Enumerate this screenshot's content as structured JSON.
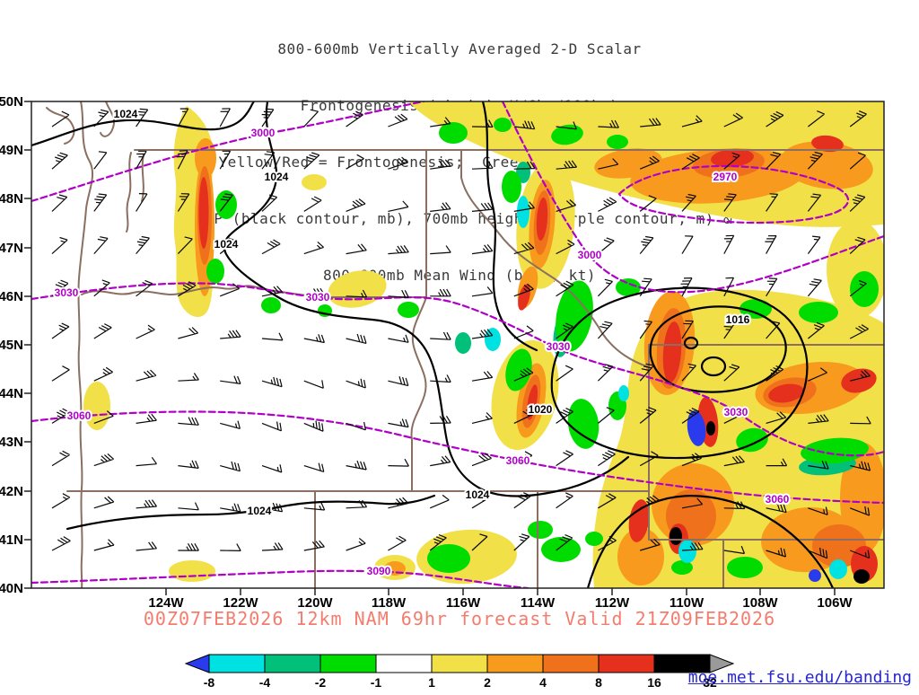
{
  "title": {
    "line1": "800-600mb Vertically Averaged 2-D Scalar",
    "line2": "Frontogenesis (shaded, K/6hr/100km)",
    "line3": "Yellow/Red = Frontogenesis;  Green/Blue = Frontolysis",
    "line4": "MSLP (black contour, mb), 700mb height (purple contour, m) &",
    "line5": "800-600mb Mean Wind (barb, kt)"
  },
  "caption": "00Z07FEB2026 12km NAM 69hr forecast Valid 21Z09FEB2026",
  "credit": "moe.met.fsu.edu/banding",
  "map": {
    "lat_labels": [
      "50N",
      "49N",
      "48N",
      "47N",
      "46N",
      "45N",
      "44N",
      "43N",
      "42N",
      "41N",
      "40N"
    ],
    "lon_labels": [
      "124W",
      "122W",
      "120W",
      "118W",
      "116W",
      "114W",
      "112W",
      "110W",
      "108W",
      "106W"
    ],
    "mslp_contour_labels": [
      "1024",
      "1024",
      "1024",
      "1016",
      "1020",
      "1024",
      "1024"
    ],
    "height_contour_labels": [
      "3000",
      "2970",
      "3000",
      "3030",
      "3030",
      "3030",
      "3030",
      "3060",
      "3060",
      "3060",
      "3090"
    ]
  },
  "colorbar": {
    "ticks": [
      "-8",
      "-4",
      "-2",
      "-1",
      "1",
      "2",
      "4",
      "8",
      "16",
      "32"
    ],
    "segment_colors": [
      "#00e2e2",
      "#00c07a",
      "#00dc00",
      "#ffffff",
      "#f2e049",
      "#f79a1e",
      "#ef711b",
      "#e5301e",
      "#000000"
    ],
    "left_arrow_color": "#2a3bee",
    "right_arrow_color": "#9a9a9a",
    "shading_units": "K/6hr/100km"
  }
}
